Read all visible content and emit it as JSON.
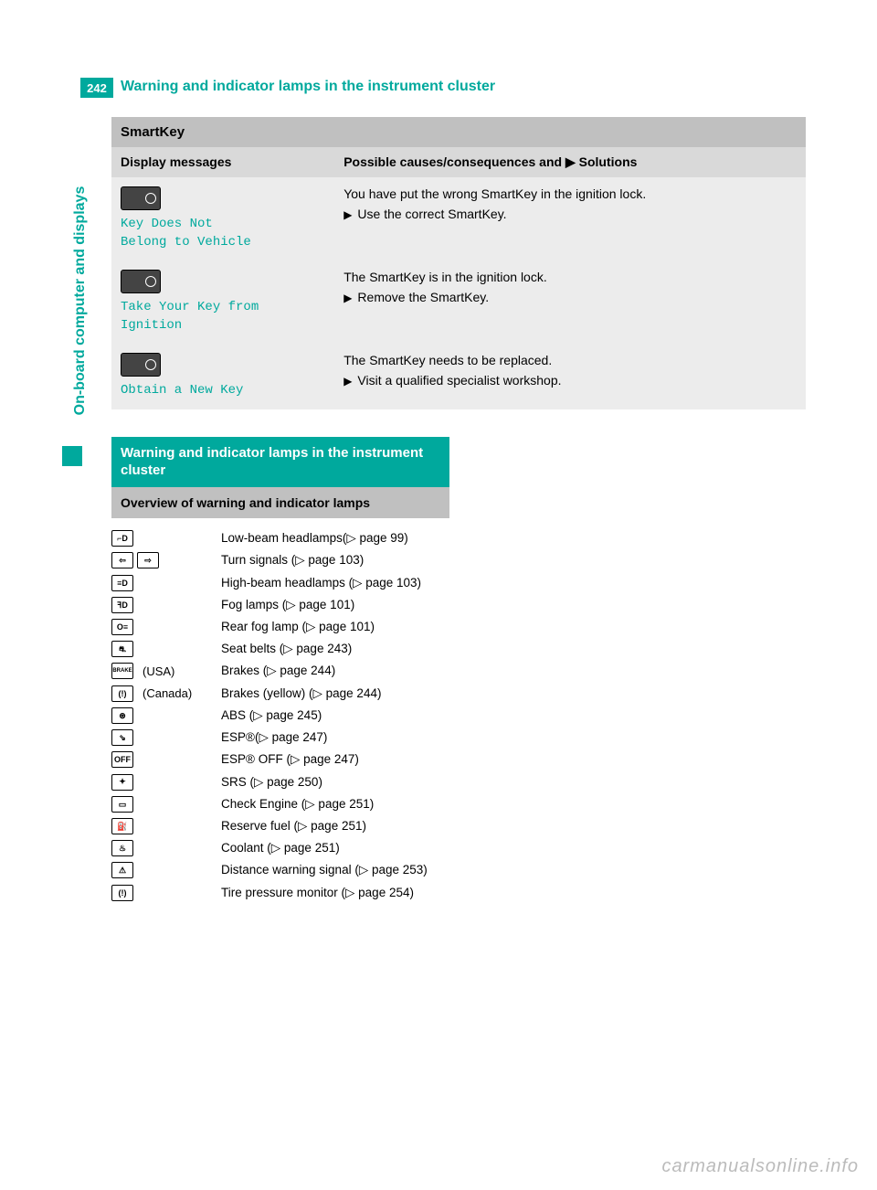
{
  "page_number": "242",
  "page_title": "Warning and indicator lamps in the instrument cluster",
  "side_tab": "On-board computer and displays",
  "colors": {
    "teal": "#00a99d",
    "section_gray": "#c0c0c0",
    "header_gray": "#d9d9d9",
    "row_gray": "#ececec",
    "watermark": "#bbbbbb"
  },
  "smartkey": {
    "title": "SmartKey",
    "col1": "Display messages",
    "col2_a": "Possible causes/consequences and ",
    "col2_b": " Solutions",
    "rows": [
      {
        "msg": "Key Does Not\nBelong to Vehicle",
        "cause": "You have put the wrong SmartKey in the ignition lock.",
        "solution": "Use the correct SmartKey."
      },
      {
        "msg": "Take Your Key from\nIgnition",
        "cause": "The SmartKey is in the ignition lock.",
        "solution": "Remove the SmartKey."
      },
      {
        "msg": "Obtain a New Key",
        "cause": "The SmartKey needs to be replaced.",
        "solution": "Visit a qualified specialist workshop."
      }
    ]
  },
  "section2": {
    "heading": "Warning and indicator lamps in the instrument cluster",
    "subheading": "Overview of warning and indicator lamps",
    "lamps": [
      {
        "icon": "low-beam",
        "glyph": "⌐D",
        "note": "",
        "desc": "Low-beam headlamps(▷ page 99)"
      },
      {
        "icon": "turn-signals",
        "glyph": "⇦ ⇨",
        "note": "",
        "desc": "Turn signals (▷ page 103)"
      },
      {
        "icon": "high-beam",
        "glyph": "≡D",
        "note": "",
        "desc": "High-beam headlamps (▷ page 103)"
      },
      {
        "icon": "fog-lamps",
        "glyph": "ꟻD",
        "note": "",
        "desc": "Fog lamps (▷ page 101)"
      },
      {
        "icon": "rear-fog",
        "glyph": "O≡",
        "note": "",
        "desc": "Rear fog lamp (▷ page 101)"
      },
      {
        "icon": "seat-belts",
        "glyph": "⛐",
        "note": "",
        "desc": "Seat belts (▷ page 243)"
      },
      {
        "icon": "brakes-usa",
        "glyph": "BRAKE",
        "note": "(USA)",
        "desc": "Brakes (▷ page 244)"
      },
      {
        "icon": "brakes-canada",
        "glyph": "(!)",
        "note": "(Canada)",
        "desc": "Brakes (yellow) (▷ page 244)"
      },
      {
        "icon": "abs",
        "glyph": "⊛",
        "note": "",
        "desc": "ABS (▷ page 245)"
      },
      {
        "icon": "esp",
        "glyph": "⇘",
        "note": "",
        "desc": "ESP®(▷ page 247)"
      },
      {
        "icon": "esp-off",
        "glyph": "OFF",
        "note": "",
        "desc": "ESP® OFF (▷ page 247)"
      },
      {
        "icon": "srs",
        "glyph": "✦",
        "note": "",
        "desc": "SRS (▷ page 250)"
      },
      {
        "icon": "check-engine",
        "glyph": "▭",
        "note": "",
        "desc": "Check Engine (▷ page 251)"
      },
      {
        "icon": "reserve-fuel",
        "glyph": "⛽",
        "note": "",
        "desc": "Reserve fuel (▷ page 251)"
      },
      {
        "icon": "coolant",
        "glyph": "♨",
        "note": "",
        "desc": "Coolant (▷ page 251)"
      },
      {
        "icon": "distance-warning",
        "glyph": "⚠",
        "note": "",
        "desc": "Distance warning signal (▷ page 253)"
      },
      {
        "icon": "tire-pressure",
        "glyph": "(!)",
        "note": "",
        "desc": "Tire pressure monitor (▷ page 254)"
      }
    ]
  },
  "watermark": "carmanualsonline.info"
}
